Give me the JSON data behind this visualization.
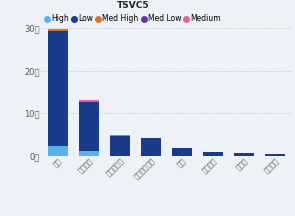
{
  "title": "TSVC5",
  "categories": [
    "대학",
    "중소기업",
    "출연연구소",
    "국공립연구소",
    "기타",
    "중견기업",
    "대기업",
    "정부부처"
  ],
  "series": {
    "High": [
      2200,
      1100,
      0,
      0,
      0,
      0,
      0,
      0
    ],
    "Low": [
      27000,
      11500,
      4700,
      4100,
      1750,
      850,
      580,
      350
    ],
    "Med High": [
      250,
      220,
      0,
      0,
      0,
      0,
      0,
      0
    ],
    "Med Low": [
      80,
      80,
      0,
      0,
      0,
      0,
      0,
      0
    ],
    "Medium": [
      300,
      280,
      60,
      40,
      10,
      5,
      3,
      2
    ]
  },
  "colors": {
    "High": "#56b4e9",
    "Low": "#1a3a8a",
    "Med High": "#e07020",
    "Med Low": "#7030a0",
    "Medium": "#e8609a"
  },
  "ylim": [
    0,
    30000
  ],
  "yticks": [
    0,
    10000,
    20000,
    30000
  ],
  "ytick_labels": [
    "0천",
    "10천",
    "20천",
    "30천"
  ],
  "background_color": "#eef2f8",
  "legend_order": [
    "High",
    "Low",
    "Med High",
    "Med Low",
    "Medium"
  ]
}
